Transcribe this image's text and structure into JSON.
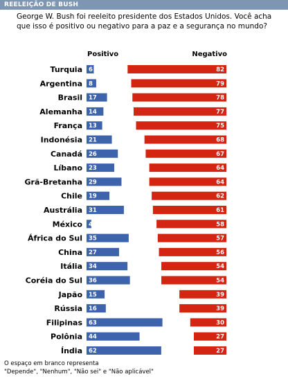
{
  "header": {
    "title": "REELEIÇÃO DE BUSH"
  },
  "question": "George W. Bush foi reeleito presidente dos Estados Unidos. Você acha que isso é positivo ou negativo para a paz e a segurança no mundo?",
  "footnote": {
    "line1": "O espaço em branco representa",
    "line2": "\"Depende\", \"Nenhum\", \"Não sei\" e \"Não aplicável\""
  },
  "colors": {
    "positive": "#3d63ad",
    "negative": "#d42412",
    "header_bg": "#7f96b2"
  },
  "chart_data": {
    "type": "bar",
    "orientation": "horizontal",
    "stacking": "diverging",
    "categories": [
      "Turquia",
      "Argentina",
      "Brasil",
      "Alemanha",
      "França",
      "Indonésia",
      "Canadá",
      "Líbano",
      "Grã-Bretanha",
      "Chile",
      "Austrália",
      "México",
      "África do Sul",
      "China",
      "Itália",
      "Coréia do Sul",
      "Japão",
      "Rússia",
      "Filipinas",
      "Polônia",
      "Índia"
    ],
    "series": [
      {
        "name": "Positivo",
        "values": [
          6,
          8,
          17,
          14,
          13,
          21,
          26,
          23,
          29,
          19,
          31,
          4,
          35,
          27,
          34,
          36,
          15,
          16,
          63,
          44,
          62
        ]
      },
      {
        "name": "Negativo",
        "values": [
          82,
          79,
          78,
          77,
          75,
          68,
          67,
          64,
          64,
          62,
          61,
          58,
          57,
          56,
          54,
          54,
          39,
          39,
          30,
          27,
          27
        ]
      }
    ]
  }
}
